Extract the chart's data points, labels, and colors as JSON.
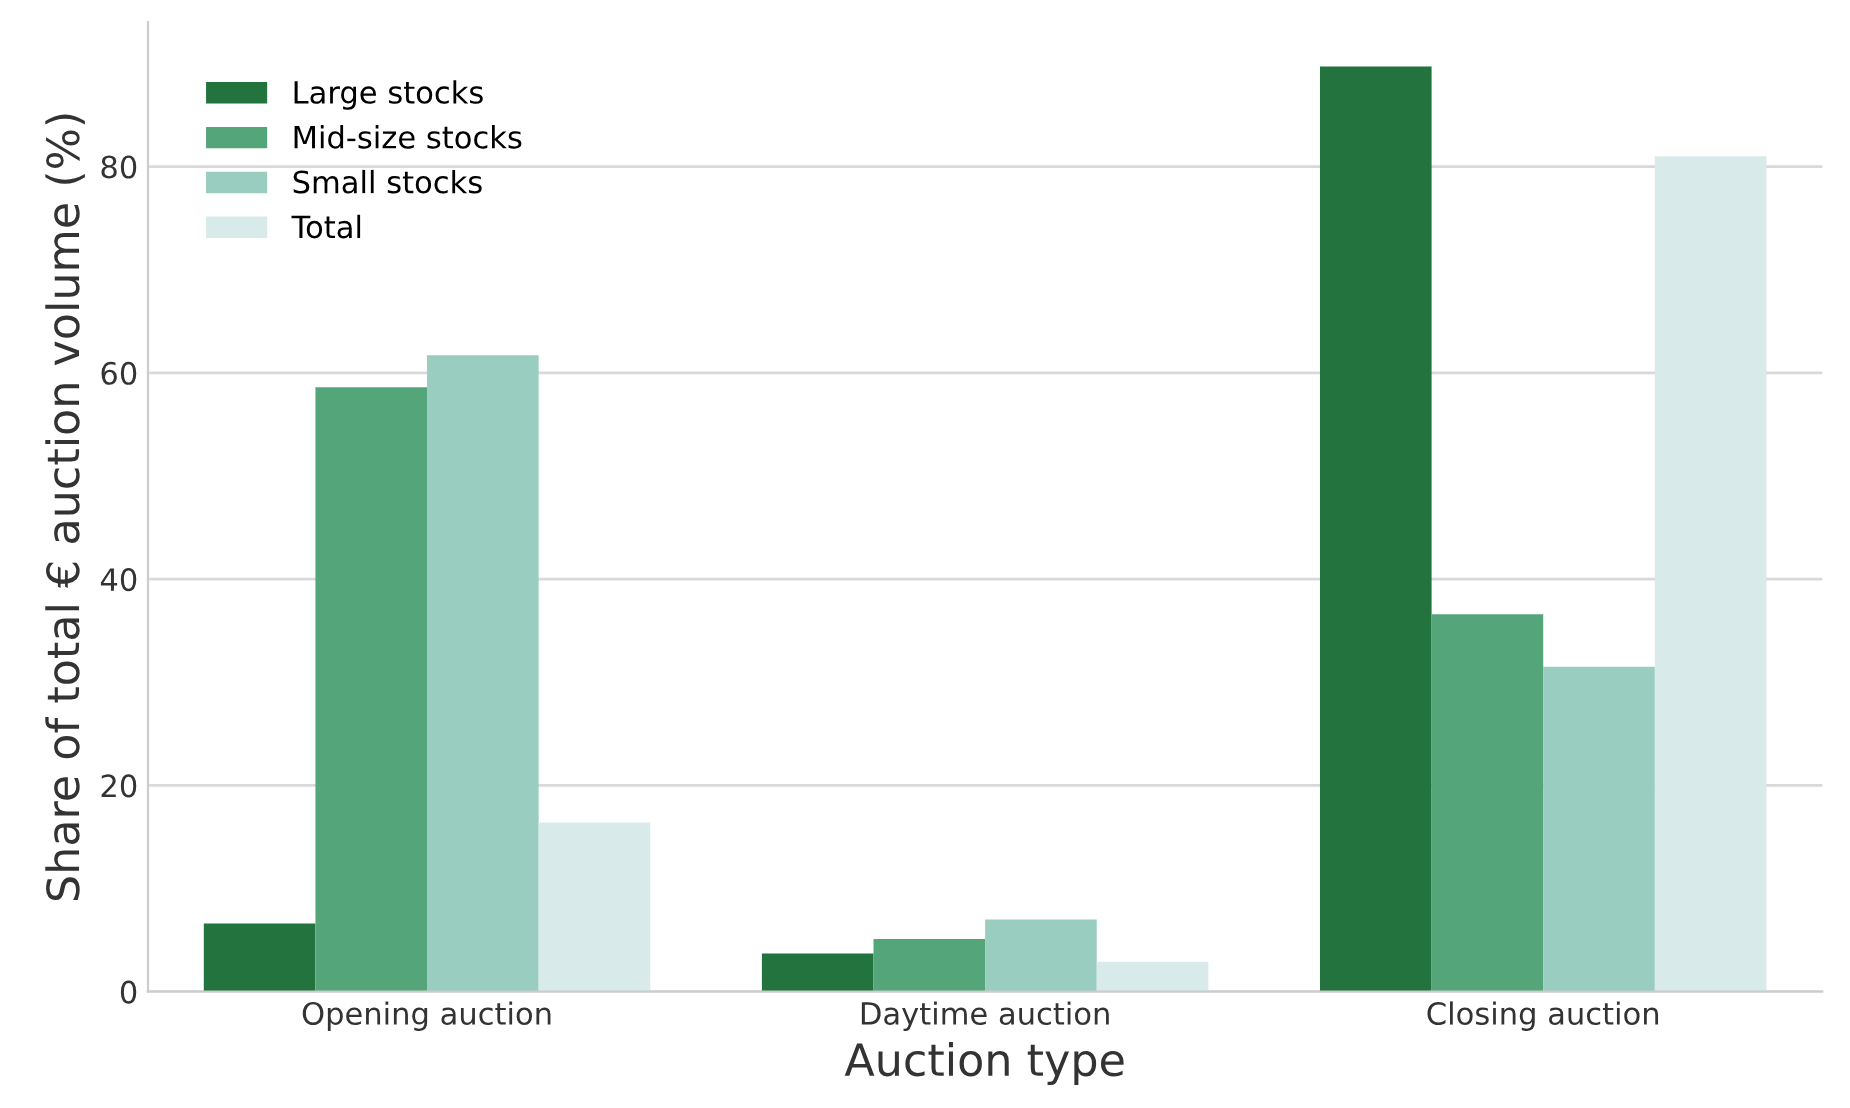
{
  "chart_data": {
    "type": "bar",
    "xlabel": "Auction type",
    "ylabel": "Share of total € auction volume (%)",
    "categories": [
      "Opening auction",
      "Daytime auction",
      "Closing auction"
    ],
    "series": [
      {
        "name": "Large stocks",
        "color": "#22733e",
        "values": [
          6.6,
          3.7,
          89.7
        ]
      },
      {
        "name": "Mid-size stocks",
        "color": "#55a57b",
        "values": [
          58.6,
          5.1,
          36.6
        ]
      },
      {
        "name": "Small stocks",
        "color": "#99cdbf",
        "values": [
          61.7,
          7.0,
          31.5
        ]
      },
      {
        "name": "Total",
        "color": "#d8ebea",
        "values": [
          16.4,
          2.9,
          81.0
        ]
      }
    ],
    "ylim": [
      0,
      94
    ],
    "yticks": [
      0,
      20,
      40,
      60,
      80
    ],
    "grid": "y",
    "legend": "top left"
  }
}
